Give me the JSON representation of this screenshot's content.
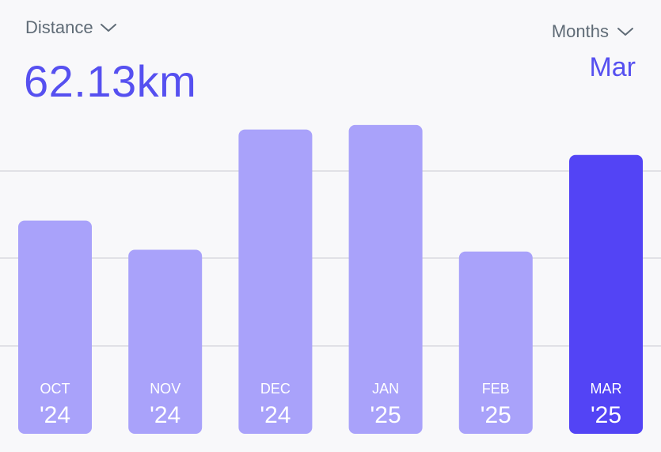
{
  "header": {
    "metric_label": "Distance",
    "metric_value": "62.13km",
    "period_label": "Months",
    "selected_label": "Mar"
  },
  "colors": {
    "accent": "#5650f0",
    "bar": "#a9a2fa",
    "bar_selected": "#5344f5",
    "grid": "#d9d9df",
    "label_text": "#ffffff"
  },
  "chart_data": {
    "type": "bar",
    "categories": [
      "OCT '24",
      "NOV '24",
      "DEC '24",
      "JAN '25",
      "FEB '25",
      "MAR '25"
    ],
    "months": [
      "OCT",
      "NOV",
      "DEC",
      "JAN",
      "FEB",
      "MAR"
    ],
    "years": [
      "'24",
      "'24",
      "'24",
      "'25",
      "'25",
      "'25"
    ],
    "values": [
      47.5,
      41.0,
      67.8,
      68.8,
      40.6,
      62.13
    ],
    "selected_index": 5,
    "ylim": [
      0,
      75
    ],
    "grid": true
  }
}
